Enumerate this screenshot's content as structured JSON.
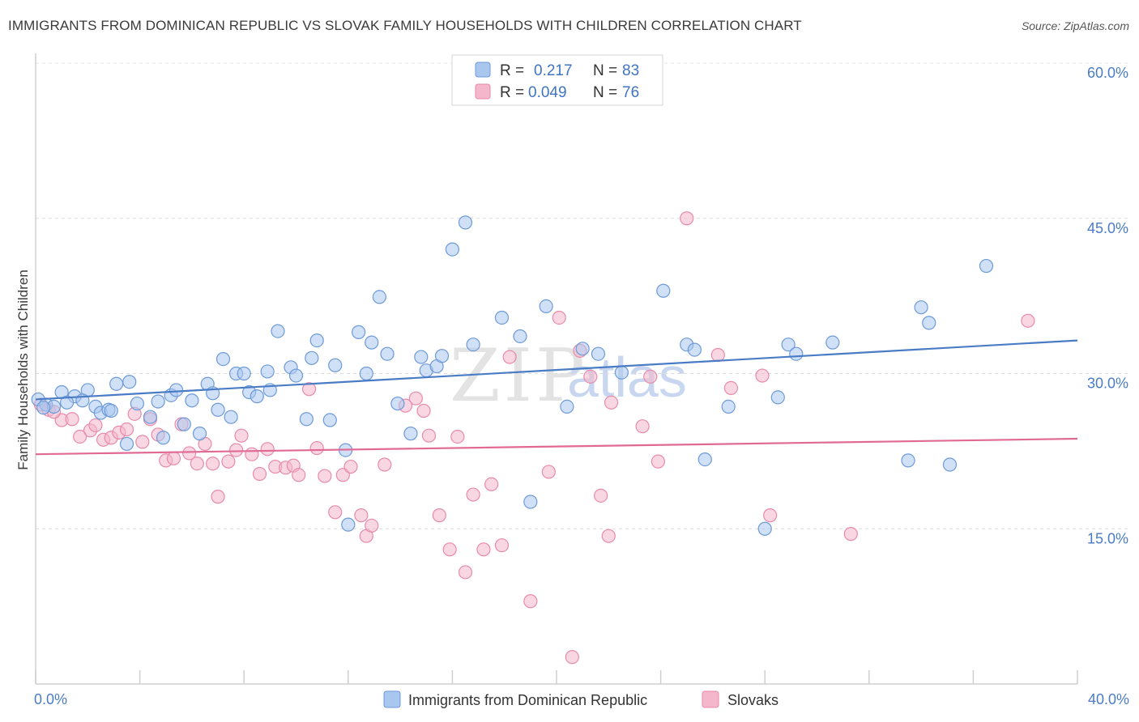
{
  "title": "IMMIGRANTS FROM DOMINICAN REPUBLIC VS SLOVAK FAMILY HOUSEHOLDS WITH CHILDREN CORRELATION CHART",
  "source": "Source: ZipAtlas.com",
  "colors": {
    "blue": "#4a7cc6",
    "blue_fill": "#a9c6ee",
    "pink": "#e06a94",
    "pink_fill": "#f4b6ca"
  },
  "legend": {
    "rows": [
      {
        "r_label": "R =",
        "r_value": "0.217",
        "n_label": "N =",
        "n_value": "83"
      },
      {
        "r_label": "R =",
        "r_value": "0.049",
        "n_label": "N =",
        "n_value": "76"
      }
    ]
  },
  "watermark": {
    "zip": "ZIP",
    "atlas": "atlas"
  },
  "chart_data": {
    "type": "scatter",
    "ylabel": "Family Households with Children",
    "xlim": [
      0,
      40
    ],
    "ylim": [
      0,
      60
    ],
    "x_tick_labels": [
      "0.0%",
      "40.0%"
    ],
    "y_ticks": [
      {
        "value": 15,
        "label": "15.0%"
      },
      {
        "value": 30,
        "label": "30.0%"
      },
      {
        "value": 45,
        "label": "45.0%"
      },
      {
        "value": 60,
        "label": "60.0%"
      }
    ],
    "series": [
      {
        "name": "Immigrants from Dominican Republic",
        "color": "blue",
        "trend": [
          [
            0,
            27.5
          ],
          [
            40,
            33.2
          ]
        ],
        "points": [
          [
            0.1,
            27.5
          ],
          [
            0.4,
            27.0
          ],
          [
            0.7,
            26.8
          ],
          [
            1.0,
            28.2
          ],
          [
            1.5,
            27.8
          ],
          [
            2.0,
            28.4
          ],
          [
            1.2,
            27.2
          ],
          [
            2.3,
            26.8
          ],
          [
            2.5,
            26.2
          ],
          [
            2.8,
            26.5
          ],
          [
            3.1,
            29.0
          ],
          [
            3.6,
            29.2
          ],
          [
            3.5,
            23.2
          ],
          [
            3.9,
            27.1
          ],
          [
            4.4,
            25.8
          ],
          [
            4.7,
            27.3
          ],
          [
            4.9,
            23.8
          ],
          [
            5.2,
            27.9
          ],
          [
            5.4,
            28.4
          ],
          [
            5.7,
            25.1
          ],
          [
            6.0,
            27.4
          ],
          [
            6.3,
            24.2
          ],
          [
            6.6,
            29.0
          ],
          [
            6.8,
            28.1
          ],
          [
            7.0,
            26.5
          ],
          [
            7.5,
            25.8
          ],
          [
            7.2,
            31.4
          ],
          [
            7.7,
            30.0
          ],
          [
            8.0,
            30.0
          ],
          [
            8.2,
            28.2
          ],
          [
            8.5,
            27.8
          ],
          [
            8.9,
            30.2
          ],
          [
            9.0,
            28.4
          ],
          [
            9.3,
            34.1
          ],
          [
            9.8,
            30.6
          ],
          [
            10.0,
            29.8
          ],
          [
            10.4,
            25.6
          ],
          [
            10.6,
            31.5
          ],
          [
            10.8,
            33.2
          ],
          [
            11.3,
            25.5
          ],
          [
            11.5,
            30.8
          ],
          [
            11.9,
            22.6
          ],
          [
            12.0,
            15.4
          ],
          [
            12.4,
            34.0
          ],
          [
            12.7,
            30.0
          ],
          [
            12.9,
            33.0
          ],
          [
            13.2,
            37.4
          ],
          [
            13.5,
            31.9
          ],
          [
            13.9,
            27.1
          ],
          [
            14.4,
            24.2
          ],
          [
            14.8,
            31.6
          ],
          [
            15.0,
            30.3
          ],
          [
            15.4,
            30.7
          ],
          [
            15.6,
            31.7
          ],
          [
            16.0,
            42.0
          ],
          [
            16.5,
            44.6
          ],
          [
            16.8,
            32.8
          ],
          [
            17.9,
            35.4
          ],
          [
            18.6,
            33.6
          ],
          [
            19.0,
            17.6
          ],
          [
            19.6,
            36.5
          ],
          [
            20.4,
            26.8
          ],
          [
            21.0,
            32.4
          ],
          [
            21.6,
            31.9
          ],
          [
            22.5,
            30.1
          ],
          [
            24.1,
            38.0
          ],
          [
            25.0,
            32.8
          ],
          [
            25.3,
            32.3
          ],
          [
            25.7,
            21.7
          ],
          [
            26.6,
            26.8
          ],
          [
            28.0,
            15.0
          ],
          [
            28.5,
            27.7
          ],
          [
            28.9,
            32.8
          ],
          [
            29.2,
            31.9
          ],
          [
            30.6,
            33.0
          ],
          [
            33.5,
            21.6
          ],
          [
            34.0,
            36.4
          ],
          [
            34.3,
            34.9
          ],
          [
            35.1,
            21.2
          ],
          [
            36.5,
            40.4
          ],
          [
            0.3,
            26.7
          ],
          [
            1.8,
            27.4
          ],
          [
            2.9,
            26.4
          ]
        ]
      },
      {
        "name": "Slovaks",
        "color": "pink",
        "trend": [
          [
            0,
            22.2
          ],
          [
            40,
            23.7
          ]
        ],
        "points": [
          [
            0.2,
            27.0
          ],
          [
            0.5,
            26.5
          ],
          [
            1.0,
            25.5
          ],
          [
            1.4,
            25.6
          ],
          [
            1.7,
            23.9
          ],
          [
            2.1,
            24.5
          ],
          [
            2.3,
            25.0
          ],
          [
            2.6,
            23.6
          ],
          [
            2.9,
            23.8
          ],
          [
            3.2,
            24.3
          ],
          [
            3.5,
            24.6
          ],
          [
            3.8,
            26.1
          ],
          [
            4.1,
            23.4
          ],
          [
            4.4,
            25.6
          ],
          [
            4.7,
            24.1
          ],
          [
            5.0,
            21.6
          ],
          [
            5.3,
            21.8
          ],
          [
            5.6,
            25.1
          ],
          [
            5.9,
            22.3
          ],
          [
            6.2,
            21.3
          ],
          [
            6.5,
            23.2
          ],
          [
            6.8,
            21.3
          ],
          [
            7.0,
            18.1
          ],
          [
            7.4,
            21.5
          ],
          [
            7.7,
            22.6
          ],
          [
            7.9,
            24.0
          ],
          [
            8.3,
            22.2
          ],
          [
            8.6,
            20.3
          ],
          [
            8.9,
            22.7
          ],
          [
            9.2,
            21.0
          ],
          [
            9.6,
            20.9
          ],
          [
            9.9,
            21.1
          ],
          [
            10.1,
            20.2
          ],
          [
            10.5,
            28.5
          ],
          [
            10.8,
            22.8
          ],
          [
            11.1,
            20.1
          ],
          [
            11.5,
            16.6
          ],
          [
            11.8,
            20.2
          ],
          [
            12.1,
            21.0
          ],
          [
            12.5,
            16.3
          ],
          [
            12.7,
            14.3
          ],
          [
            12.9,
            15.3
          ],
          [
            13.4,
            21.2
          ],
          [
            14.2,
            26.9
          ],
          [
            14.6,
            27.6
          ],
          [
            14.9,
            26.4
          ],
          [
            15.1,
            24.0
          ],
          [
            15.5,
            16.3
          ],
          [
            15.9,
            13.0
          ],
          [
            16.2,
            23.9
          ],
          [
            16.5,
            10.8
          ],
          [
            16.8,
            18.3
          ],
          [
            17.2,
            13.0
          ],
          [
            17.5,
            19.3
          ],
          [
            17.9,
            13.4
          ],
          [
            18.2,
            31.6
          ],
          [
            19.0,
            8.0
          ],
          [
            19.7,
            20.5
          ],
          [
            20.1,
            35.4
          ],
          [
            20.6,
            2.6
          ],
          [
            20.9,
            32.2
          ],
          [
            21.3,
            29.7
          ],
          [
            21.7,
            18.2
          ],
          [
            22.0,
            14.3
          ],
          [
            22.1,
            27.2
          ],
          [
            23.3,
            24.9
          ],
          [
            23.6,
            29.7
          ],
          [
            23.9,
            21.5
          ],
          [
            25.0,
            45.0
          ],
          [
            26.2,
            31.8
          ],
          [
            26.7,
            28.6
          ],
          [
            27.9,
            29.8
          ],
          [
            28.2,
            16.3
          ],
          [
            31.3,
            14.5
          ],
          [
            38.1,
            35.1
          ],
          [
            0.7,
            26.3
          ]
        ]
      }
    ]
  }
}
